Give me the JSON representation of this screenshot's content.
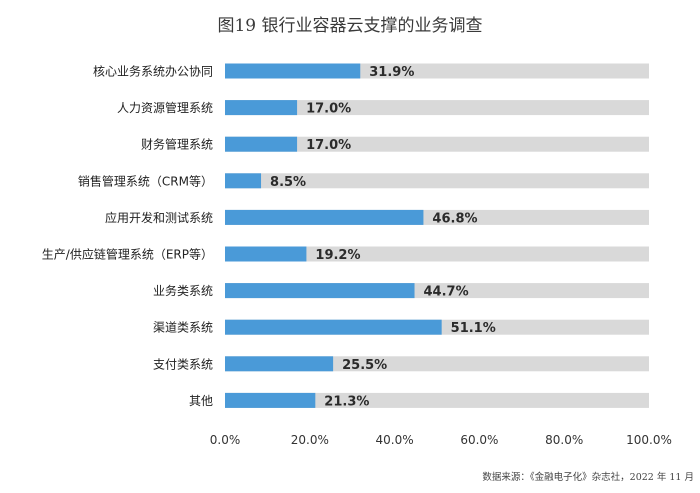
{
  "chart_data": {
    "type": "bar",
    "orientation": "horizontal",
    "title": "图19 银行业容器云支撑的业务调查",
    "categories": [
      "核心业务系统办公协同",
      "人力资源管理系统",
      "财务管理系统",
      "销售管理系统（CRM等）",
      "应用开发和测试系统",
      "生产/供应链管理系统（ERP等）",
      "业务类系统",
      "渠道类系统",
      "支付类系统",
      "其他"
    ],
    "values": [
      31.9,
      17.0,
      17.0,
      8.5,
      46.8,
      19.2,
      44.7,
      51.1,
      25.5,
      21.3
    ],
    "value_labels": [
      "31.9%",
      "17.0%",
      "17.0%",
      "8.5%",
      "46.8%",
      "19.2%",
      "44.7%",
      "51.1%",
      "25.5%",
      "21.3%"
    ],
    "xlim": [
      0,
      100
    ],
    "xticks": [
      0,
      20,
      40,
      60,
      80,
      100
    ],
    "xtick_labels": [
      "0.0%",
      "20.0%",
      "40.0%",
      "60.0%",
      "80.0%",
      "100.0%"
    ],
    "xlabel": "",
    "ylabel": "",
    "grid": false,
    "legend": "none",
    "colors": {
      "bar": "#4a9ad8",
      "track": "#d9d9d9"
    }
  },
  "source_note": "数据来源：《金融电子化》杂志社，2022 年 11 月"
}
